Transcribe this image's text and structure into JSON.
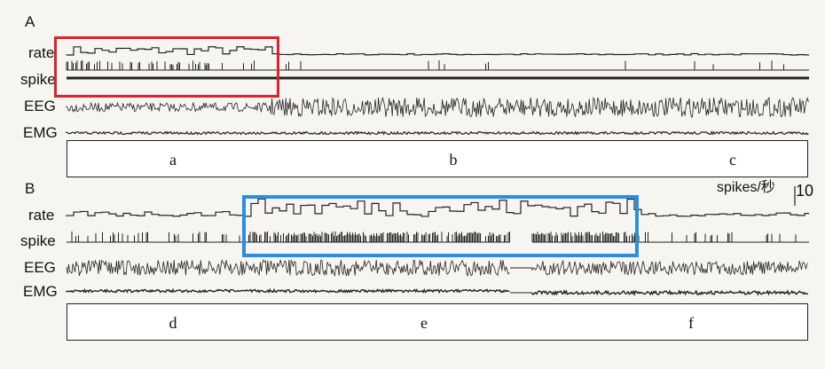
{
  "panelA": {
    "letter": "A",
    "traces": [
      "rate",
      "spike",
      "EEG",
      "EMG"
    ],
    "segments": [
      "a",
      "b",
      "c"
    ]
  },
  "panelB": {
    "letter": "B",
    "traces": [
      "rate",
      "spike",
      "EEG",
      "EMG"
    ],
    "segments": [
      "d",
      "e",
      "f"
    ],
    "scale": {
      "unit": "spikes/秒",
      "value": "10"
    }
  },
  "highlights": {
    "red_color": "#e0202a",
    "blue_color": "#2a8fe0"
  }
}
